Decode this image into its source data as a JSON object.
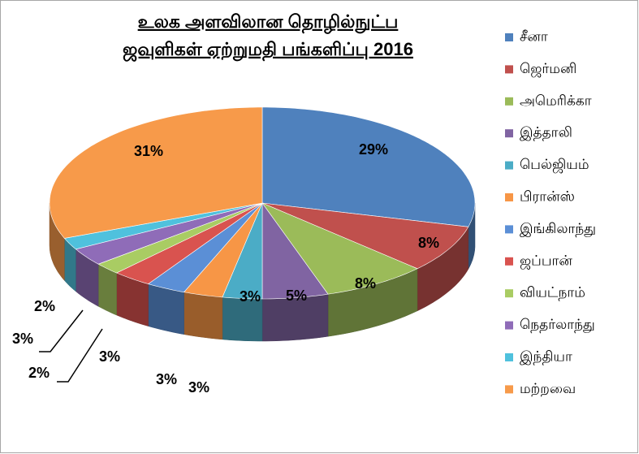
{
  "chart_data": {
    "type": "pie",
    "three_d": true,
    "title": [
      "உலக அளவிலான தொழில்நுட்ப",
      "ஜவுளிகள் ஏற்றுமதி பங்களிப்பு 2016"
    ],
    "categories": [
      "சீனா",
      "ஜெர்மனி",
      "அமெரிக்கா",
      "இத்தாலி",
      "பெல்ஜியம்",
      "பிரான்ஸ்",
      "இங்கிலாந்து",
      "ஜப்பான்",
      "வியட்நாம்",
      "நெதர்லாந்து",
      "இந்தியா",
      "மற்றவை"
    ],
    "values": [
      29,
      8,
      8,
      5,
      3,
      3,
      3,
      3,
      2,
      3,
      2,
      31
    ],
    "value_labels": [
      "29%",
      "8%",
      "8%",
      "5%",
      "3%",
      "3%",
      "3%",
      "3%",
      "2%",
      "3%",
      "2%",
      "31%"
    ],
    "colors": [
      "#4f81bd",
      "#c0504d",
      "#9bbb59",
      "#8064a2",
      "#4bacc6",
      "#f79646",
      "#5b8fd6",
      "#d9534f",
      "#a9cc63",
      "#8f6cb8",
      "#4fc1dd",
      "#f79a4a"
    ],
    "legend": "right"
  }
}
